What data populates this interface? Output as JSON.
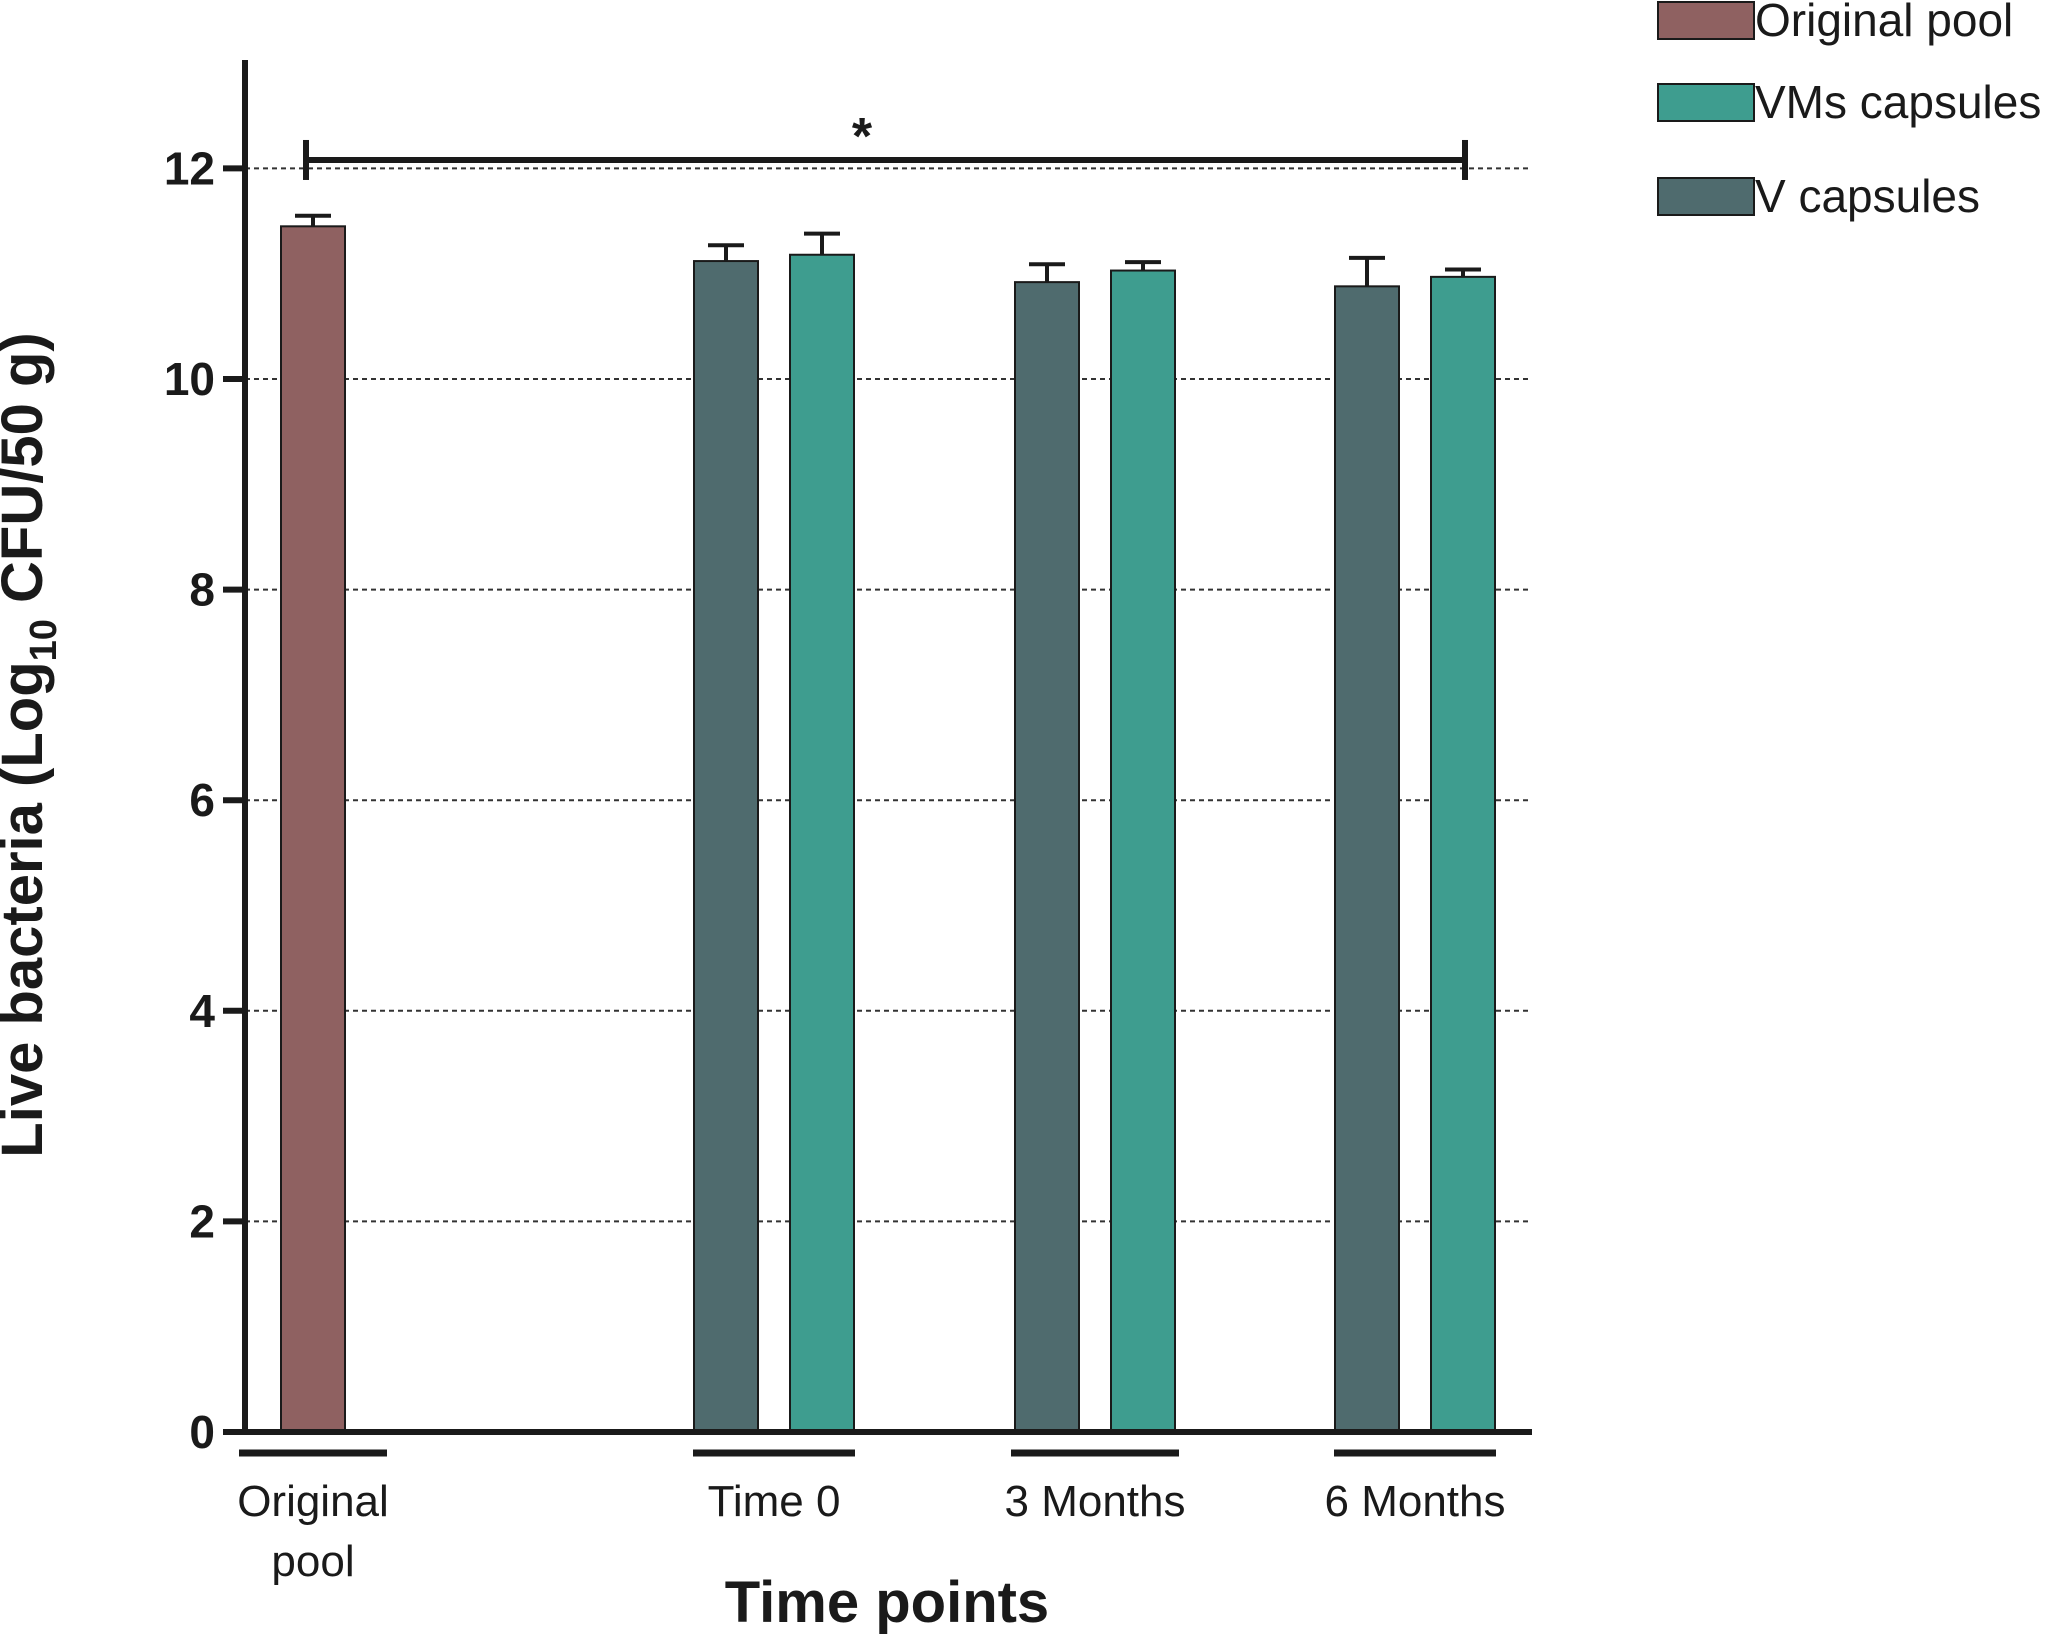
{
  "chart_data": {
    "type": "bar",
    "ylabel_main": "Live bacteria (Log",
    "ylabel_sub": "10",
    "ylabel_tail": " CFU/50 g)",
    "xlabel": "Time points",
    "ylim": [
      0,
      13
    ],
    "yticks": [
      "0",
      "2",
      "4",
      "6",
      "8",
      "10",
      "12"
    ],
    "grid": "dotted-horizontal",
    "legend_position": "top-right",
    "colors": {
      "original_pool": "#8f6161",
      "vms_capsules": "#3e9d8f",
      "v_capsules": "#4f6b6e",
      "axis": "#1a1a1a"
    },
    "groups": [
      {
        "label_lines": [
          "Original",
          "pool"
        ],
        "bars": [
          {
            "series": "original_pool",
            "value": 11.45,
            "error": 0.1
          }
        ]
      },
      {
        "label_lines": [
          "Time 0"
        ],
        "bars": [
          {
            "series": "v_capsules",
            "value": 11.12,
            "error": 0.15
          },
          {
            "series": "vms_capsules",
            "value": 11.18,
            "error": 0.2
          }
        ]
      },
      {
        "label_lines": [
          "3 Months"
        ],
        "bars": [
          {
            "series": "v_capsules",
            "value": 10.92,
            "error": 0.17
          },
          {
            "series": "vms_capsules",
            "value": 11.03,
            "error": 0.08
          }
        ]
      },
      {
        "label_lines": [
          "6 Months"
        ],
        "bars": [
          {
            "series": "v_capsules",
            "value": 10.88,
            "error": 0.27
          },
          {
            "series": "vms_capsules",
            "value": 10.97,
            "error": 0.07
          }
        ]
      }
    ],
    "legend": [
      {
        "series": "original_pool",
        "label": "Original pool"
      },
      {
        "series": "vms_capsules",
        "label": "VMs capsules"
      },
      {
        "series": "v_capsules",
        "label": "V capsules"
      }
    ],
    "significance": {
      "label": "*",
      "value": 12.08
    }
  }
}
